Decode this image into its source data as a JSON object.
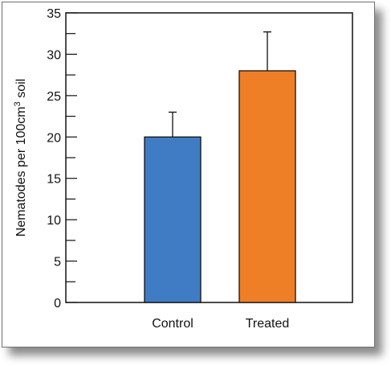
{
  "chart_data": {
    "type": "bar",
    "title": "",
    "xlabel": "",
    "ylabel": "Nematodes per 100cm",
    "ylabel_superscript": "3",
    "ylabel_suffix": " soil",
    "categories": [
      "Control",
      "Treated"
    ],
    "values": [
      20,
      28
    ],
    "errors": [
      3,
      4.7
    ],
    "bar_colors": [
      "#3f7cc4",
      "#ef7f27"
    ],
    "ylim": [
      0,
      35
    ],
    "y_major_ticks": [
      0,
      5,
      10,
      15,
      20,
      25,
      30,
      35
    ],
    "y_minor_step": 2.5,
    "grid": false,
    "legend": "none"
  }
}
